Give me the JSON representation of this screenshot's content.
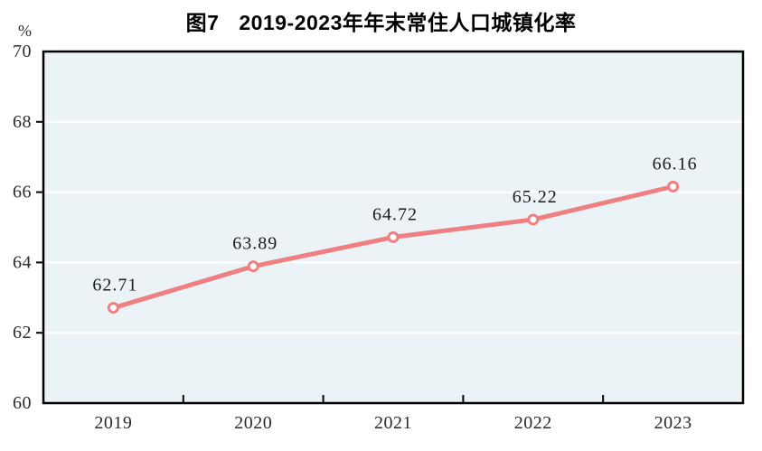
{
  "header": {
    "figure_label": "图7",
    "figure_title": "2019-2023年年末常住人口城镇化率"
  },
  "chart_data": {
    "type": "line",
    "title": "图7 2019-2023年年末常住人口城镇化率",
    "unit_label": "%",
    "categories": [
      "2019",
      "2020",
      "2021",
      "2022",
      "2023"
    ],
    "values": [
      62.71,
      63.89,
      64.72,
      65.22,
      66.16
    ],
    "point_labels": [
      "62.71",
      "63.89",
      "64.72",
      "65.22",
      "66.16"
    ],
    "xlabel": "",
    "ylabel": "%",
    "ylim": [
      60,
      70
    ],
    "yticks": [
      60,
      62,
      64,
      66,
      68,
      70
    ],
    "gridline_values": [
      62,
      64,
      66,
      68
    ],
    "grid": "horizontal",
    "legend": "none",
    "colors": {
      "line": "#ef7f80",
      "marker_fill": "#ffffff",
      "plot_background": "#ebf3f6",
      "gridline": "#fdfefe",
      "plot_border": "#000000",
      "tick_text": "#2b2b2b",
      "label_text": "#1a1a1a",
      "title_text": "#000000"
    }
  }
}
